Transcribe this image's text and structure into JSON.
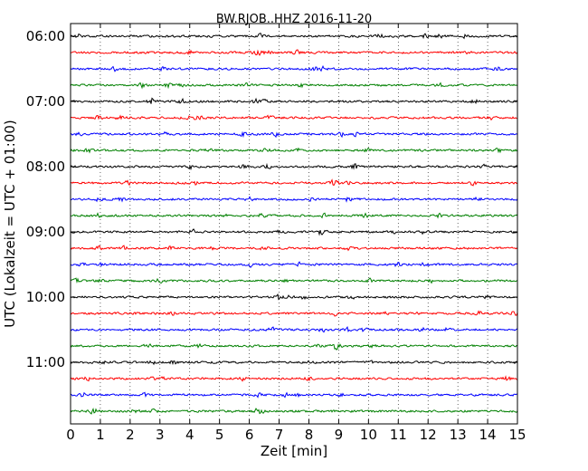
{
  "chart_data": {
    "type": "line",
    "title": "BW.RJOB..HHZ 2016-11-20",
    "xlabel": "Zeit  [min]",
    "ylabel": "UTC (Lokalzeit = UTC + 01:00)",
    "xlim": [
      0,
      15
    ],
    "xticks": [
      0,
      1,
      2,
      3,
      4,
      5,
      6,
      7,
      8,
      9,
      10,
      11,
      12,
      13,
      14,
      15
    ],
    "yticks": [
      "06:00",
      "07:00",
      "08:00",
      "09:00",
      "10:00",
      "11:00"
    ],
    "row_interval_minutes": 15,
    "start_time": "06:00",
    "row_colors": [
      "#000000",
      "#ff0000",
      "#0000ff",
      "#008000"
    ],
    "grid": "vertical dotted",
    "series": [
      {
        "values": [
          "06:00"
        ]
      },
      {
        "values": [
          "06:15"
        ]
      },
      {
        "values": [
          "06:30"
        ]
      },
      {
        "values": [
          "06:45"
        ]
      },
      {
        "values": [
          "07:00"
        ]
      },
      {
        "values": [
          "07:15"
        ]
      },
      {
        "values": [
          "07:30"
        ]
      },
      {
        "values": [
          "07:45"
        ]
      },
      {
        "values": [
          "08:00"
        ]
      },
      {
        "values": [
          "08:15"
        ]
      },
      {
        "values": [
          "08:30"
        ]
      },
      {
        "values": [
          "08:45"
        ]
      },
      {
        "values": [
          "09:00"
        ]
      },
      {
        "values": [
          "09:15"
        ]
      },
      {
        "values": [
          "09:30"
        ]
      },
      {
        "values": [
          "09:45"
        ]
      },
      {
        "values": [
          "10:00"
        ]
      },
      {
        "values": [
          "10:15"
        ]
      },
      {
        "values": [
          "10:30"
        ]
      },
      {
        "values": [
          "10:45"
        ]
      },
      {
        "values": [
          "11:00"
        ]
      },
      {
        "values": [
          "11:15"
        ]
      },
      {
        "values": [
          "11:30"
        ]
      },
      {
        "values": [
          "11:45"
        ]
      }
    ]
  }
}
